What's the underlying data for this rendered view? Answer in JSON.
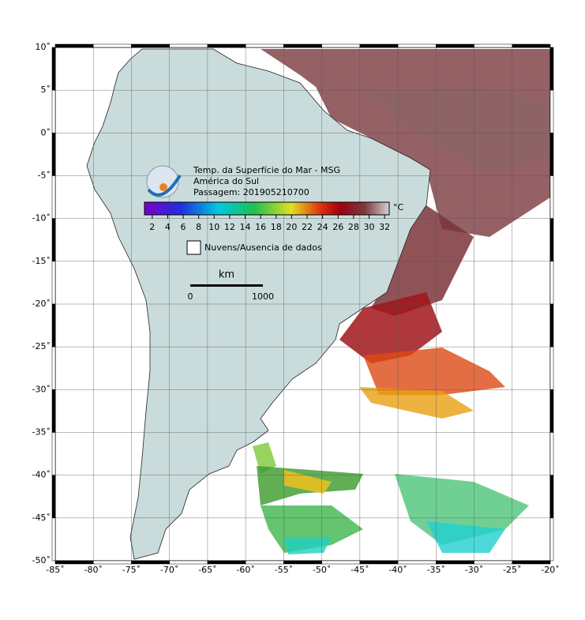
{
  "map": {
    "title": [
      "Temp. da Superfície do Mar - MSG",
      "América do Sul",
      "Passagem: 201905210700"
    ],
    "colorbar": {
      "range": [
        1,
        32.6
      ],
      "ticks": [
        2,
        4,
        6,
        8,
        10,
        12,
        14,
        16,
        18,
        20,
        22,
        24,
        26,
        28,
        30,
        32
      ],
      "unit": "°C"
    },
    "legend": "Nuvens/Ausencia de dados",
    "scale": {
      "unit": "km",
      "labels": [
        "0",
        "1000"
      ]
    },
    "xlim": [
      -85,
      -20
    ],
    "ylim": [
      -50,
      10
    ],
    "xticks": [
      {
        "value": -85,
        "label": "-85˚"
      },
      {
        "value": -80,
        "label": "-80˚"
      },
      {
        "value": -75,
        "label": "-75˚"
      },
      {
        "value": -70,
        "label": "-70˚"
      },
      {
        "value": -65,
        "label": "-65˚"
      },
      {
        "value": -60,
        "label": "-60˚"
      },
      {
        "value": -55,
        "label": "-55˚"
      },
      {
        "value": -50,
        "label": "-50˚"
      },
      {
        "value": -45,
        "label": "-45˚"
      },
      {
        "value": -40,
        "label": "-40˚"
      },
      {
        "value": -35,
        "label": "-35˚"
      },
      {
        "value": -30,
        "label": "-30˚"
      },
      {
        "value": -25,
        "label": "-25˚"
      },
      {
        "value": -20,
        "label": "-20˚"
      }
    ],
    "yticks": [
      {
        "value": 10,
        "label": "10˚"
      },
      {
        "value": 5,
        "label": "5˚"
      },
      {
        "value": 0,
        "label": "0˚"
      },
      {
        "value": -5,
        "label": "-5˚"
      },
      {
        "value": -10,
        "label": "-10˚"
      },
      {
        "value": -15,
        "label": "-15˚"
      },
      {
        "value": -20,
        "label": "-20˚"
      },
      {
        "value": -25,
        "label": "-25˚"
      },
      {
        "value": -30,
        "label": "-30˚"
      },
      {
        "value": -35,
        "label": "-35˚"
      },
      {
        "value": -40,
        "label": "-40˚"
      },
      {
        "value": -45,
        "label": "-45˚"
      },
      {
        "value": -50,
        "label": "-50˚"
      }
    ]
  }
}
